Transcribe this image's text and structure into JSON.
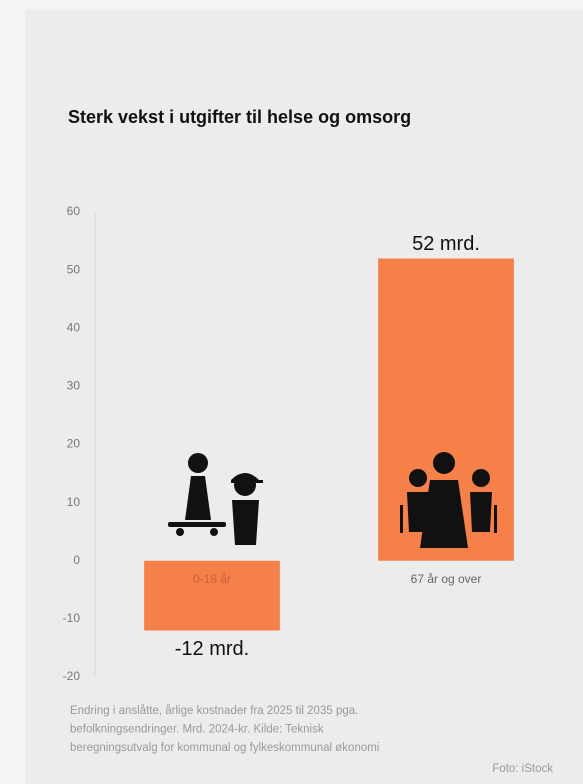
{
  "chart_data": {
    "type": "bar",
    "title": "Sterk vekst i utgifter til helse og omsorg",
    "categories": [
      "0-18 år",
      "67 år og over"
    ],
    "values": [
      -12,
      52
    ],
    "value_labels": [
      "-12 mrd.",
      "52 mrd."
    ],
    "color": "#f5804a",
    "ylim": [
      -20,
      60
    ],
    "yticks": [
      -20,
      -10,
      0,
      10,
      20,
      30,
      40,
      50,
      60
    ],
    "grid": false,
    "footnote": [
      "Endring i anslåtte, årlige kostnader fra 2025 til 2035 pga.",
      "befolkningsendringer. Mrd. 2024-kr. Kilde: Teknisk",
      "beregningsutvalg for kommunal og fylkeskommunal økonomi"
    ],
    "credit": "Foto: iStock"
  }
}
